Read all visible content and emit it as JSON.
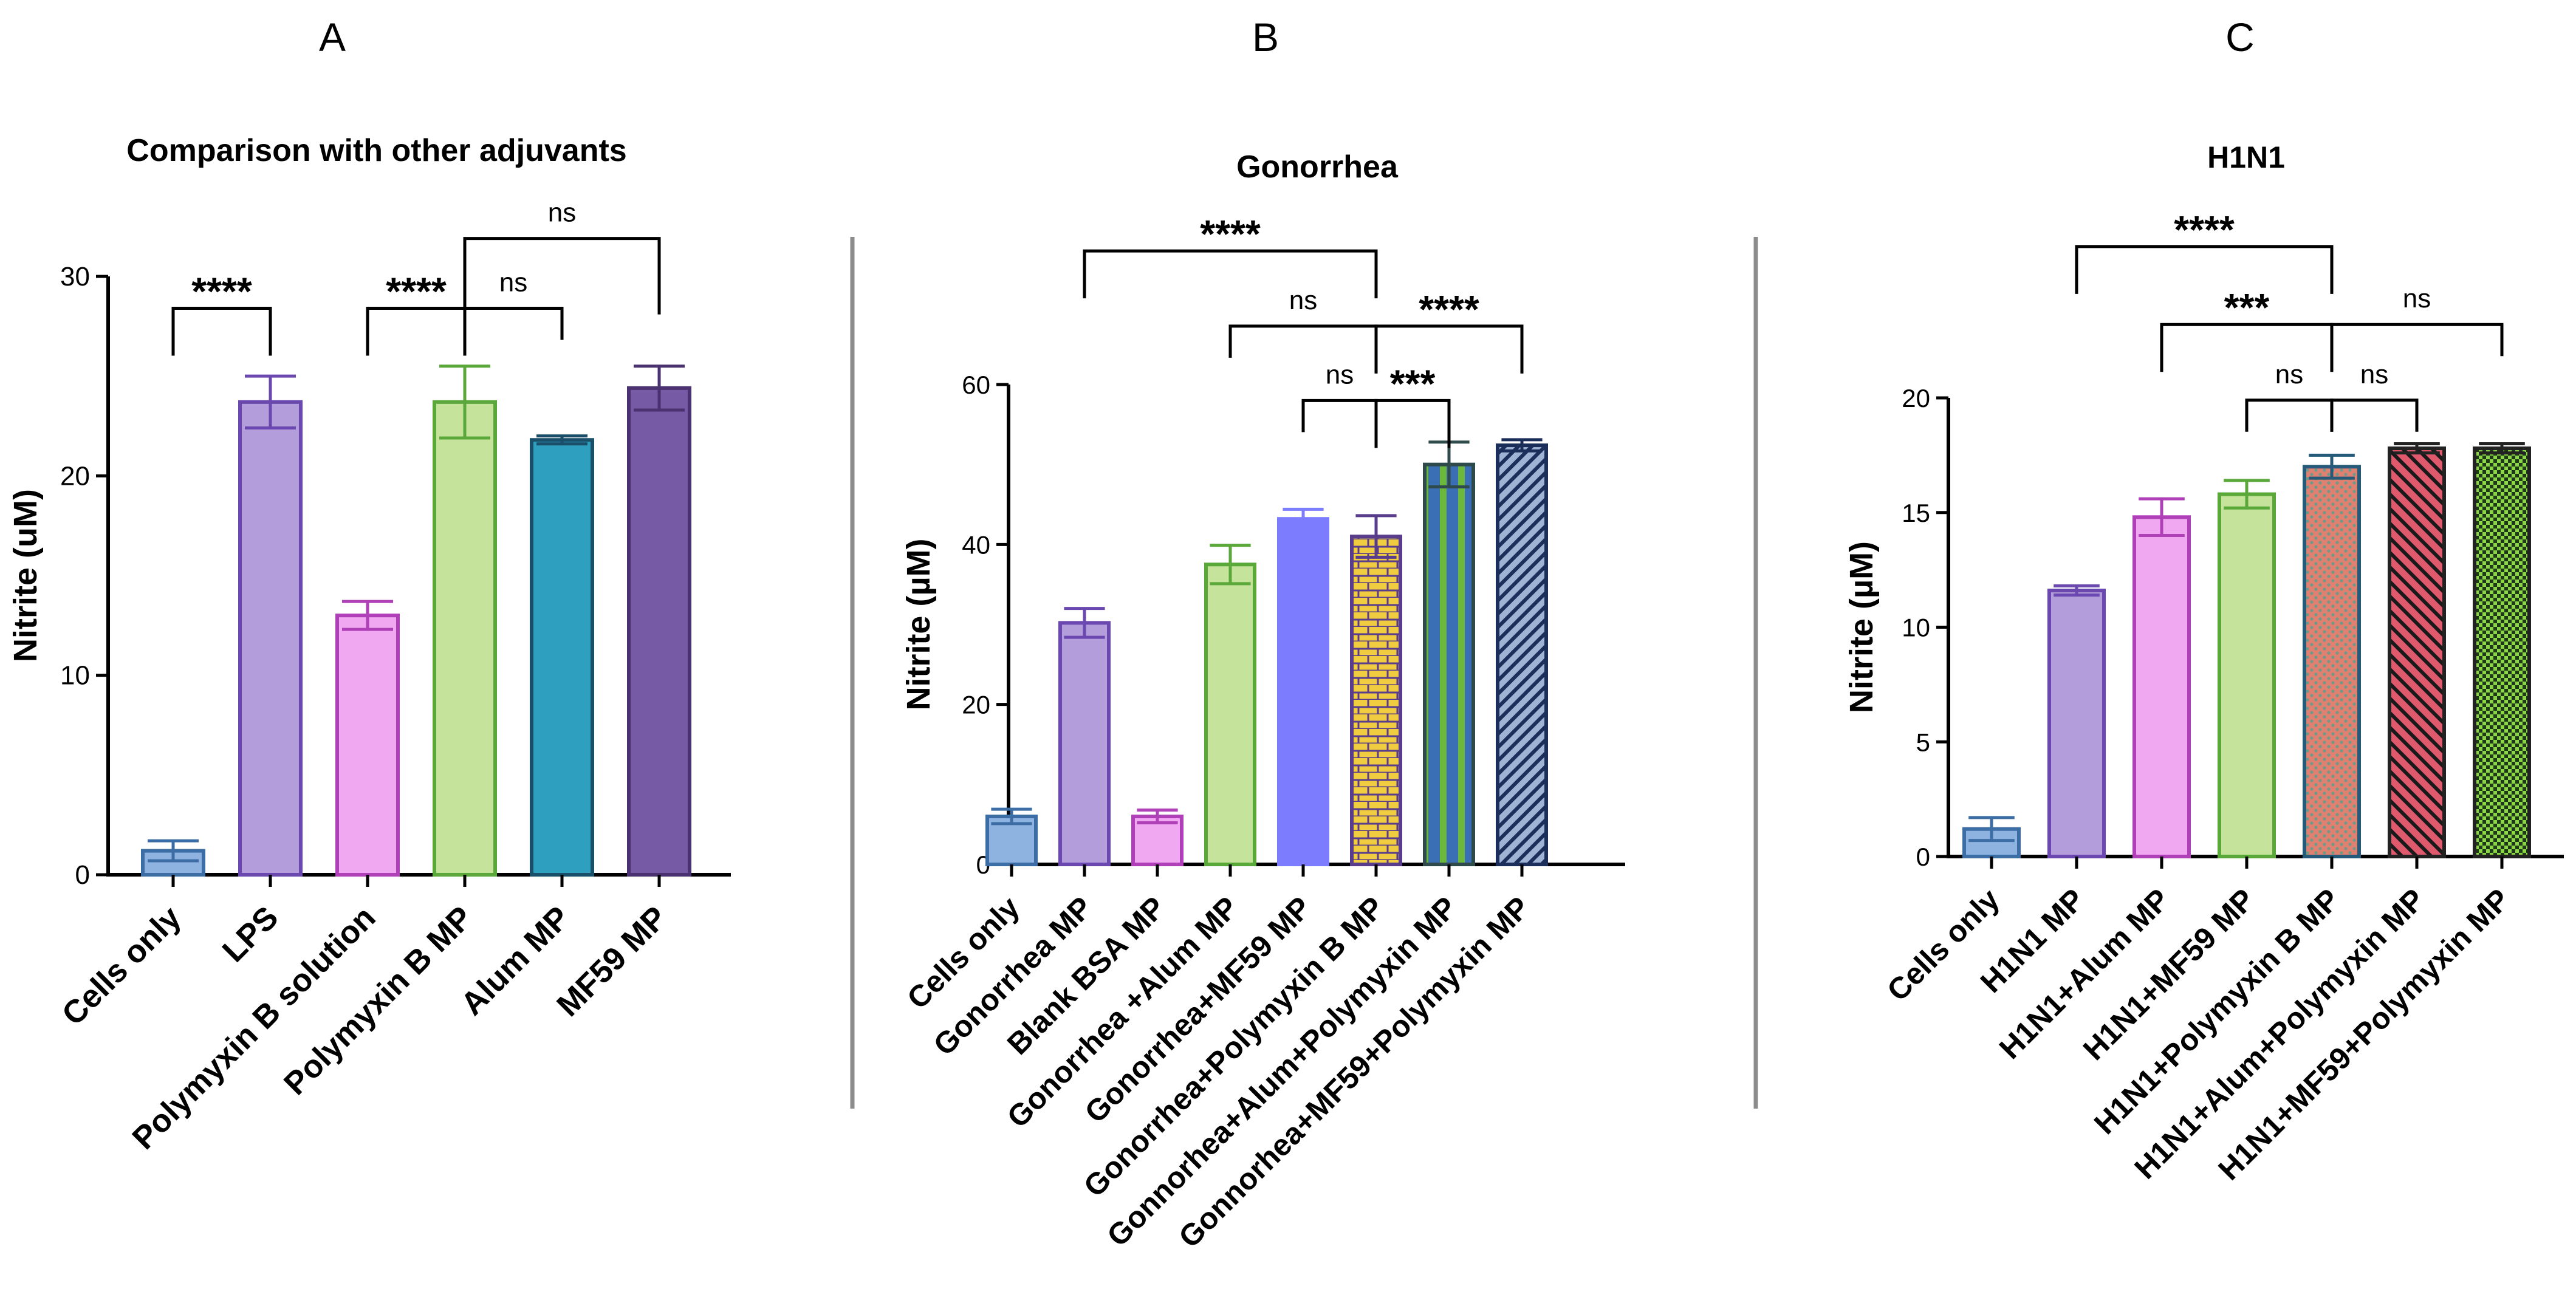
{
  "figure": {
    "colors": {
      "axis": "#000000",
      "divider": "#8c8c8c"
    }
  },
  "chart_data": [
    {
      "panel_label": "A",
      "type": "bar",
      "title": "Comparison with other adjuvants",
      "xlabel": "",
      "ylabel": "Nitrite (uM)",
      "ylim": [
        0,
        30
      ],
      "yticks": [
        0,
        10,
        20,
        30
      ],
      "categories": [
        "Cells only",
        "LPS",
        "Polymyxin B solution",
        "Polymyxin B MP",
        "Alum MP",
        "MF59 MP"
      ],
      "values": [
        1.2,
        23.7,
        13.0,
        23.7,
        21.8,
        24.4
      ],
      "errors": [
        0.5,
        1.3,
        0.7,
        1.8,
        0.2,
        1.1
      ],
      "fills": [
        "#8fb3e0",
        "#b39ddb",
        "#f0a8f0",
        "#c5e39a",
        "#2e9fbe",
        "#765aa6"
      ],
      "strokes": [
        "#3c6ea5",
        "#6a48b0",
        "#b040b8",
        "#5aa83a",
        "#1a4f6a",
        "#4a3270"
      ],
      "patterns": [
        "none",
        "none",
        "none",
        "none",
        "none",
        "none"
      ],
      "significance": [
        {
          "from": 0,
          "to": 1,
          "label": "****",
          "y": 28.4
        },
        {
          "from": 2,
          "to": 3,
          "label": "****",
          "y": 28.4
        },
        {
          "from": 3,
          "to": 4,
          "label": "ns",
          "y": 28.4
        },
        {
          "from": 3,
          "to": 5,
          "label": "ns",
          "y": 31.9
        }
      ]
    },
    {
      "panel_label": "B",
      "type": "bar",
      "title": "Gonorrhea",
      "xlabel": "",
      "ylabel": "Nitrite (µM)",
      "ylim": [
        0,
        60
      ],
      "yticks": [
        0,
        20,
        40,
        60
      ],
      "categories": [
        "Cells only",
        "Gonorrhea MP",
        "Blank BSA MP",
        "Gonorrhea +Alum MP",
        "Gonorrhea+MF59 MP",
        "Gonorrhea+Polymyxin B MP",
        "Gonnorhea+Alum+Polymyxin MP",
        "Gonnorhea+MF59+Polymyxin MP"
      ],
      "values": [
        6.0,
        30.2,
        6.0,
        37.5,
        43.2,
        41.0,
        50.0,
        52.4
      ],
      "errors": [
        0.9,
        1.8,
        0.8,
        2.4,
        1.2,
        2.6,
        2.8,
        0.7
      ],
      "fills": [
        "#8fb3e0",
        "#b39ddb",
        "#f0a8f0",
        "#c5e39a",
        "#7c7cff",
        "#f0cc40",
        "#3a6fb5",
        "#9db4d4"
      ],
      "strokes": [
        "#3c6ea5",
        "#6a48b0",
        "#b040b8",
        "#5aa83a",
        "#7c7cff",
        "#5a3c8c",
        "#2e4a4a",
        "#1c2e5a"
      ],
      "patterns": [
        "none",
        "none",
        "none",
        "none",
        "none",
        "brick",
        "vstripe",
        "diag"
      ],
      "significance": [
        {
          "from": 1,
          "to": 5,
          "label": "****",
          "y": 76.7
        },
        {
          "from": 3,
          "to": 5,
          "label": "ns",
          "y": 67.3
        },
        {
          "from": 5,
          "to": 7,
          "label": "****",
          "y": 67.3
        },
        {
          "from": 4,
          "to": 5,
          "label": "ns",
          "y": 58.0
        },
        {
          "from": 5,
          "to": 6,
          "label": "***",
          "y": 58.0
        }
      ]
    },
    {
      "panel_label": "C",
      "type": "bar",
      "title": "H1N1",
      "xlabel": "",
      "ylabel": "Nitrite (µM)",
      "ylim": [
        0,
        20
      ],
      "yticks": [
        0,
        5,
        10,
        15,
        20
      ],
      "categories": [
        "Cells only",
        "H1N1 MP",
        "H1N1+Alum MP",
        "H1N1+MF59 MP",
        "H1N1+Polymyxin B MP",
        "H1N1+Alum+Polymyxin MP",
        "H1N1+MF59+Polymyxin MP"
      ],
      "values": [
        1.2,
        11.6,
        14.8,
        15.8,
        17.0,
        17.8,
        17.8
      ],
      "errors": [
        0.5,
        0.2,
        0.8,
        0.6,
        0.5,
        0.2,
        0.2
      ],
      "fills": [
        "#8fb3e0",
        "#b39ddb",
        "#f0a8f0",
        "#c5e39a",
        "#e08070",
        "#e05a6e",
        "#8cd44a"
      ],
      "strokes": [
        "#3c6ea5",
        "#6a48b0",
        "#b040b8",
        "#5aa83a",
        "#255a78",
        "#222222",
        "#222222"
      ],
      "patterns": [
        "none",
        "none",
        "none",
        "none",
        "dots",
        "diag",
        "check"
      ],
      "significance": [
        {
          "from": 1,
          "to": 4,
          "label": "****",
          "y": 26.6
        },
        {
          "from": 2,
          "to": 4,
          "label": "***",
          "y": 23.2
        },
        {
          "from": 4,
          "to": 6,
          "label": "ns",
          "y": 23.2
        },
        {
          "from": 3,
          "to": 4,
          "label": "ns",
          "y": 19.9
        },
        {
          "from": 4,
          "to": 5,
          "label": "ns",
          "y": 19.9
        }
      ]
    }
  ]
}
